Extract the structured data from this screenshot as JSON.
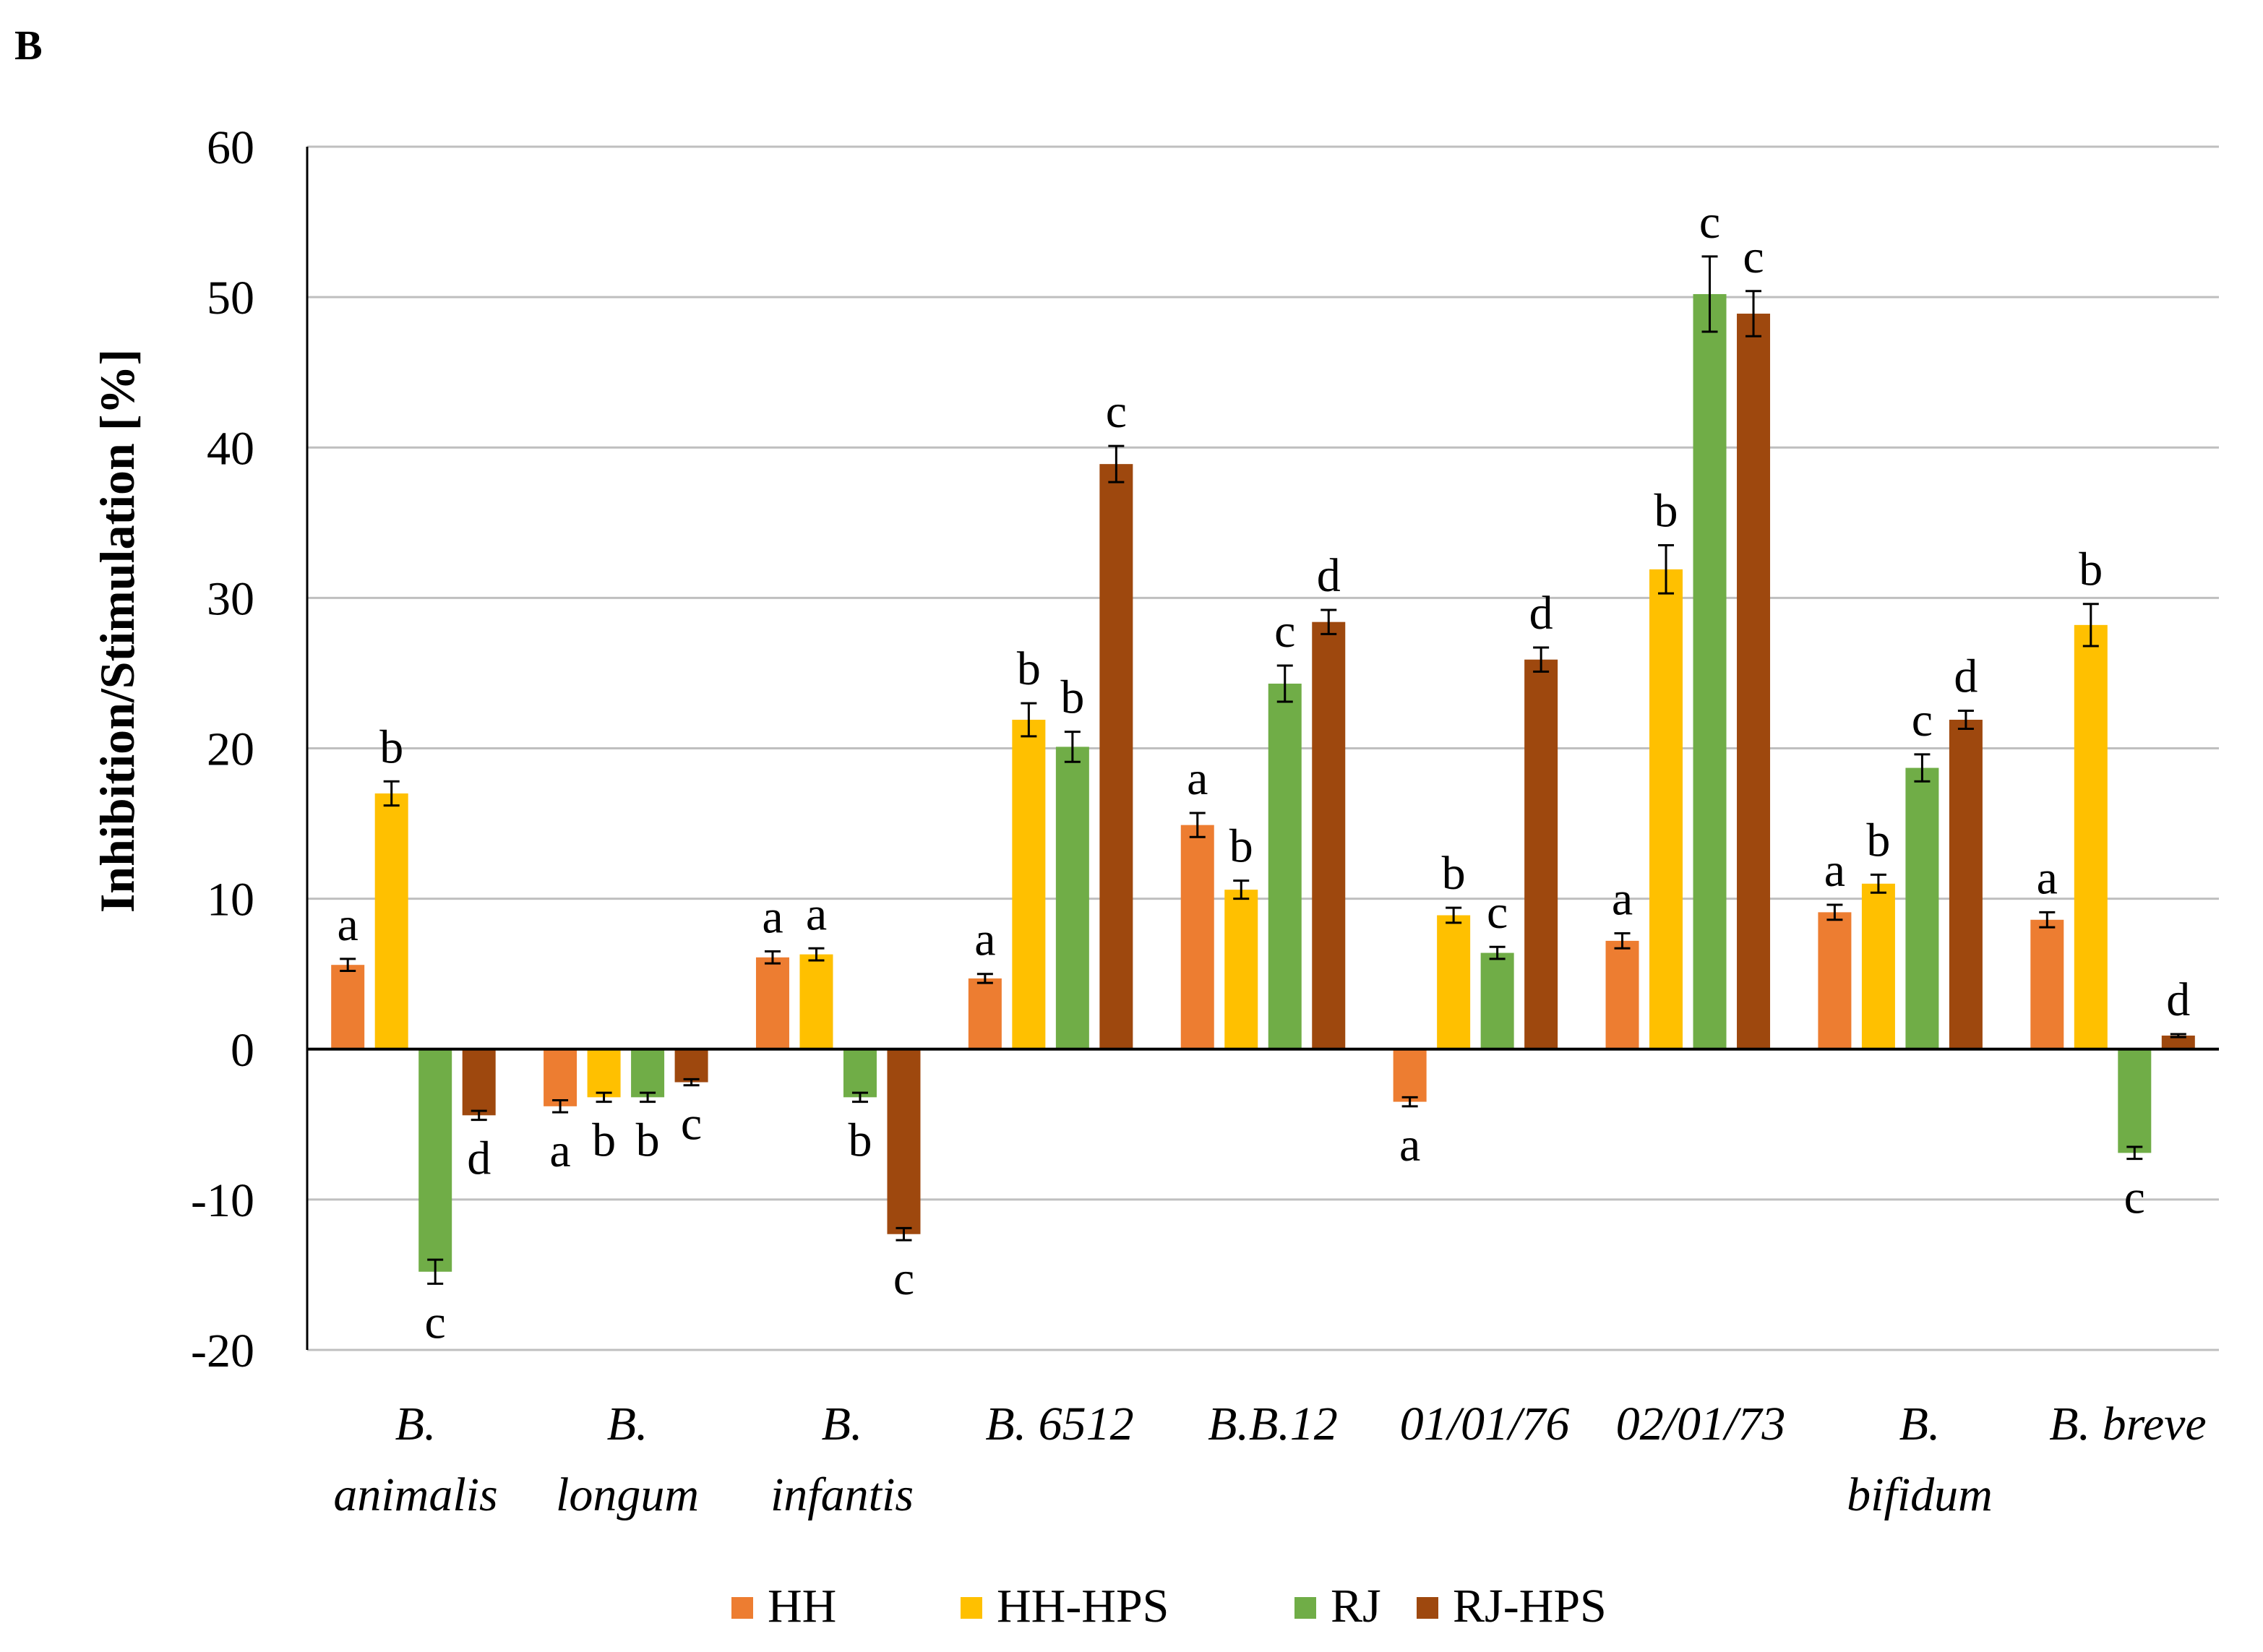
{
  "panel_label": "B",
  "chart_data": {
    "type": "bar",
    "title": "",
    "xlabel": "",
    "ylabel": "Inhibition/Stimulation [%]",
    "ylim": [
      -20,
      60
    ],
    "yticks": [
      60,
      50,
      40,
      30,
      20,
      10,
      0,
      -10,
      -20
    ],
    "grid": true,
    "legend_position": "bottom",
    "categories": [
      [
        "B.",
        "animalis"
      ],
      [
        "B.",
        "longum"
      ],
      [
        "B.",
        "infantis"
      ],
      [
        "B. 6512"
      ],
      [
        "B.B.12"
      ],
      [
        "01/01/76"
      ],
      [
        "02/01/73"
      ],
      [
        "B.",
        "bifidum"
      ],
      [
        "B. breve"
      ]
    ],
    "series": [
      {
        "name": "HH",
        "color": "#ED7D31",
        "values": [
          5.6,
          -3.8,
          6.1,
          4.7,
          14.9,
          -3.5,
          7.2,
          9.1,
          8.6
        ],
        "errors": [
          0.4,
          0.4,
          0.4,
          0.3,
          0.8,
          0.3,
          0.5,
          0.5,
          0.5
        ],
        "letters": [
          "a",
          "a",
          "a",
          "a",
          "a",
          "a",
          "a",
          "a",
          "a"
        ]
      },
      {
        "name": "HH-HPS",
        "color": "#FFC000",
        "values": [
          17.0,
          -3.2,
          6.3,
          21.9,
          10.6,
          8.9,
          31.9,
          11.0,
          28.2
        ],
        "errors": [
          0.8,
          0.3,
          0.4,
          1.1,
          0.6,
          0.5,
          1.6,
          0.6,
          1.4
        ],
        "letters": [
          "b",
          "b",
          "a",
          "b",
          "b",
          "b",
          "b",
          "b",
          "b"
        ]
      },
      {
        "name": "RJ",
        "color": "#70AD47",
        "values": [
          -14.8,
          -3.2,
          -3.2,
          20.1,
          24.3,
          6.4,
          50.2,
          18.7,
          -6.9
        ],
        "errors": [
          0.8,
          0.3,
          0.3,
          1.0,
          1.2,
          0.4,
          2.5,
          0.9,
          0.4
        ],
        "letters": [
          "c",
          "b",
          "b",
          "b",
          "c",
          "c",
          "c",
          "c",
          "c"
        ]
      },
      {
        "name": "RJ-HPS",
        "color": "#9E480E",
        "values": [
          -4.4,
          -2.2,
          -12.3,
          38.9,
          28.4,
          25.9,
          48.9,
          21.9,
          0.9
        ],
        "errors": [
          0.3,
          0.2,
          0.4,
          1.2,
          0.8,
          0.8,
          1.5,
          0.6,
          0.1
        ],
        "letters": [
          "d",
          "c",
          "c",
          "c",
          "d",
          "d",
          "c",
          "d",
          "d"
        ]
      }
    ]
  }
}
